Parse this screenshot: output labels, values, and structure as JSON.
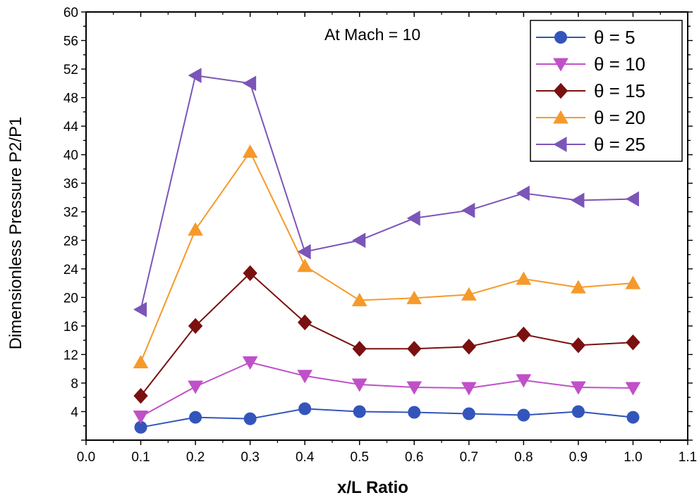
{
  "chart_data": {
    "type": "line",
    "title": "",
    "annotation": "At Mach = 10",
    "xlabel": "x/L Ratio",
    "ylabel": "Dimensionless Pressure P2/P1",
    "xlim": [
      0.0,
      1.1
    ],
    "ylim": [
      0,
      60
    ],
    "xticks": [
      "0.0",
      "0.1",
      "0.2",
      "0.3",
      "0.4",
      "0.5",
      "0.6",
      "0.7",
      "0.8",
      "0.9",
      "1.0",
      "1.1"
    ],
    "yticks": [
      "4",
      "8",
      "12",
      "16",
      "20",
      "24",
      "28",
      "32",
      "36",
      "40",
      "44",
      "48",
      "52",
      "56",
      "60"
    ],
    "legend_position": "top-right",
    "grid": false,
    "x": [
      0.1,
      0.2,
      0.3,
      0.4,
      0.5,
      0.6,
      0.7,
      0.8,
      0.9,
      1.0
    ],
    "series": [
      {
        "name": "θ = 5",
        "marker": "circle",
        "color": "#3355bb",
        "values": [
          1.8,
          3.2,
          3.0,
          4.4,
          4.0,
          3.9,
          3.7,
          3.5,
          4.0,
          3.2
        ]
      },
      {
        "name": "θ = 10",
        "marker": "triangle-down",
        "color": "#c050c8",
        "values": [
          3.3,
          7.5,
          10.9,
          9.0,
          7.8,
          7.4,
          7.3,
          8.4,
          7.4,
          7.3
        ]
      },
      {
        "name": "θ = 15",
        "marker": "diamond",
        "color": "#7a1010",
        "values": [
          6.2,
          16.0,
          23.4,
          16.5,
          12.8,
          12.8,
          13.1,
          14.8,
          13.3,
          13.7
        ]
      },
      {
        "name": "θ = 20",
        "marker": "triangle-up",
        "color": "#f59a2a",
        "values": [
          10.9,
          29.5,
          40.4,
          24.4,
          19.6,
          19.9,
          20.4,
          22.6,
          21.4,
          22.0
        ]
      },
      {
        "name": "θ = 25",
        "marker": "triangle-left",
        "color": "#7c55b8",
        "values": [
          18.3,
          51.1,
          50.0,
          26.4,
          28.0,
          31.1,
          32.2,
          34.6,
          33.6,
          33.8
        ]
      }
    ]
  }
}
